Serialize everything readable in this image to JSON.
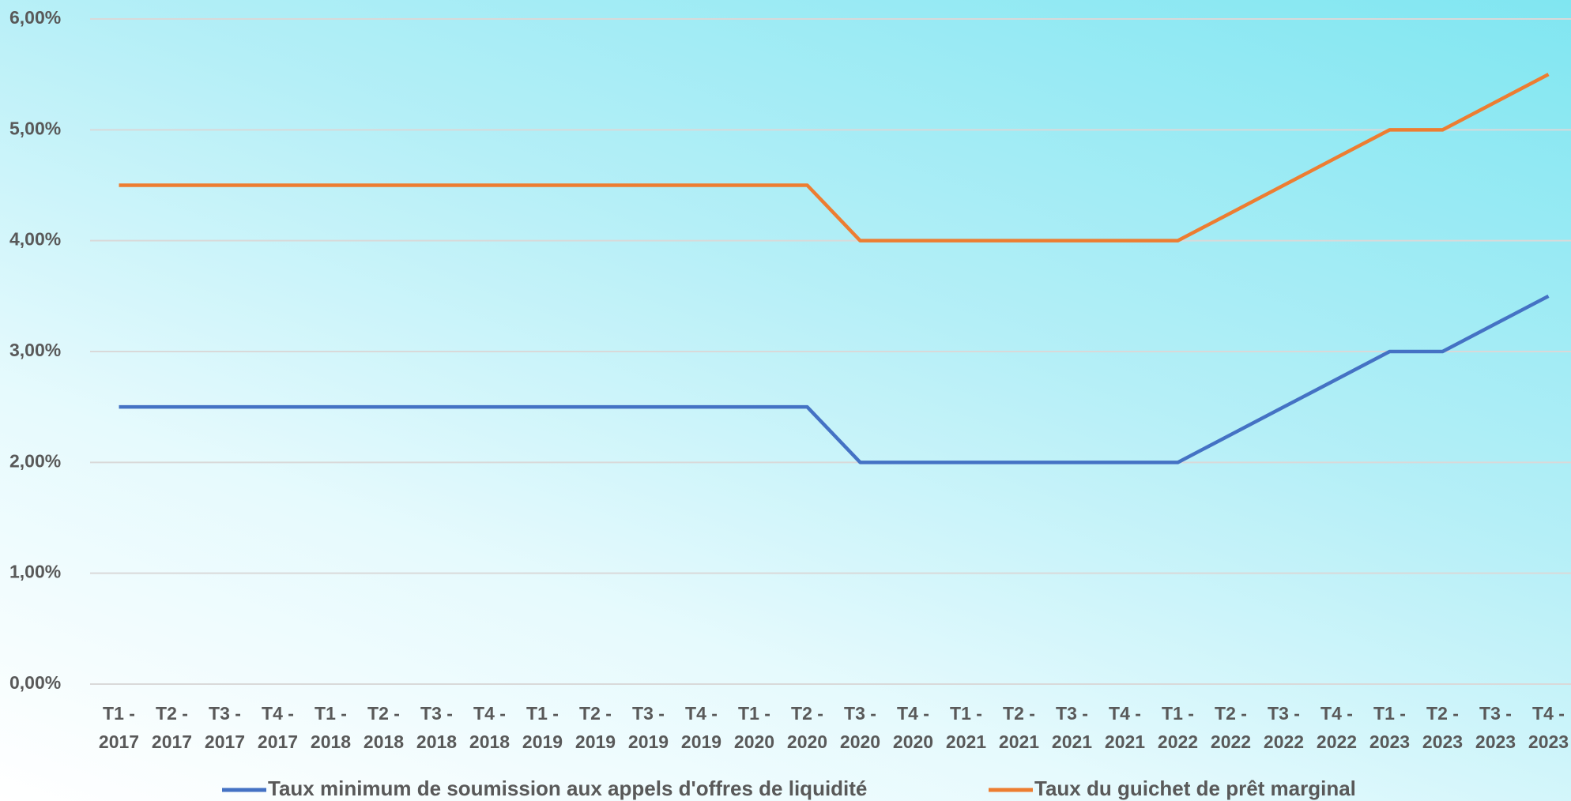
{
  "chart_data": {
    "type": "line",
    "categories": [
      "T1 - 2017",
      "T2 - 2017",
      "T3 - 2017",
      "T4 - 2017",
      "T1 - 2018",
      "T2 - 2018",
      "T3 - 2018",
      "T4 - 2018",
      "T1 - 2019",
      "T2 - 2019",
      "T3 - 2019",
      "T4 - 2019",
      "T1 - 2020",
      "T2 - 2020",
      "T3 - 2020",
      "T4 - 2020",
      "T1 - 2021",
      "T2 - 2021",
      "T3 - 2021",
      "T4 - 2021",
      "T1 - 2022",
      "T2 - 2022",
      "T3 - 2022",
      "T4 - 2022",
      "T1 - 2023",
      "T2 - 2023",
      "T3 - 2023",
      "T4 - 2023"
    ],
    "series": [
      {
        "name": "Taux minimum de soumission aux appels d'offres de liquidité",
        "color": "#4472c4",
        "values": [
          2.5,
          2.5,
          2.5,
          2.5,
          2.5,
          2.5,
          2.5,
          2.5,
          2.5,
          2.5,
          2.5,
          2.5,
          2.5,
          2.5,
          2.0,
          2.0,
          2.0,
          2.0,
          2.0,
          2.0,
          2.0,
          2.25,
          2.5,
          2.75,
          3.0,
          3.0,
          3.25,
          3.5
        ]
      },
      {
        "name": "Taux du guichet de prêt marginal",
        "color": "#ed7d31",
        "values": [
          4.5,
          4.5,
          4.5,
          4.5,
          4.5,
          4.5,
          4.5,
          4.5,
          4.5,
          4.5,
          4.5,
          4.5,
          4.5,
          4.5,
          4.0,
          4.0,
          4.0,
          4.0,
          4.0,
          4.0,
          4.0,
          4.25,
          4.5,
          4.75,
          5.0,
          5.0,
          5.25,
          5.5
        ]
      }
    ],
    "ylim": [
      0,
      6
    ],
    "yticks": [
      {
        "value": 0,
        "label": "0,00%"
      },
      {
        "value": 1,
        "label": "1,00%"
      },
      {
        "value": 2,
        "label": "2,00%"
      },
      {
        "value": 3,
        "label": "3,00%"
      },
      {
        "value": 4,
        "label": "4,00%"
      },
      {
        "value": 5,
        "label": "5,00%"
      },
      {
        "value": 6,
        "label": "6,00%"
      }
    ],
    "grid": true,
    "legend": "bottom"
  }
}
